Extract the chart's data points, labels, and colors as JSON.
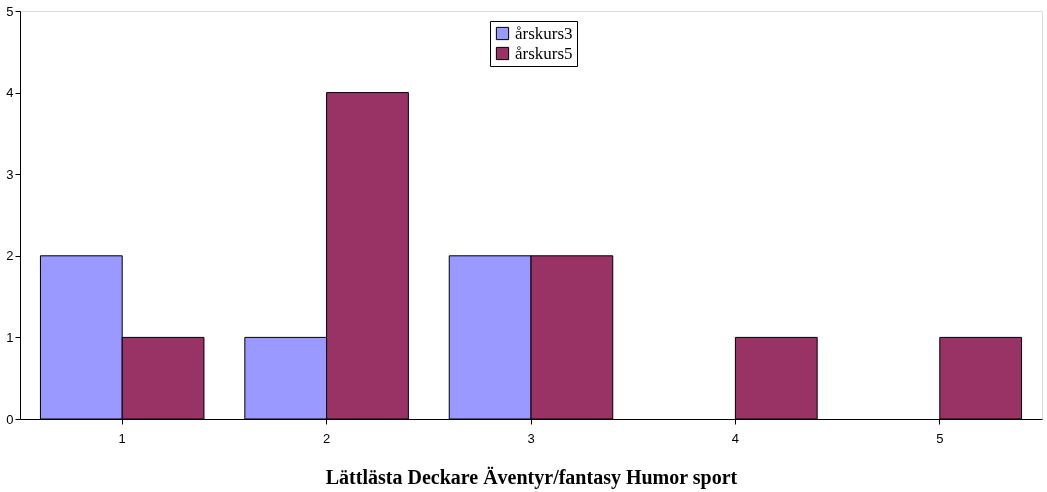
{
  "chart_data": {
    "type": "bar",
    "xlabel": "Lättlästa          Deckare     Äventyr/fantasy          Humor       sport",
    "categories": [
      "1",
      "2",
      "3",
      "4",
      "5"
    ],
    "series": [
      {
        "name": "årskurs3",
        "color": "#9999ff",
        "values": [
          2,
          1,
          2,
          null,
          null
        ]
      },
      {
        "name": "årskurs5",
        "color": "#993366",
        "values": [
          1,
          4,
          2,
          1,
          1
        ]
      }
    ],
    "ylim": [
      0,
      5
    ],
    "yticks": [
      0,
      1,
      2,
      3,
      4,
      5
    ],
    "grid": false,
    "legend": "top"
  }
}
